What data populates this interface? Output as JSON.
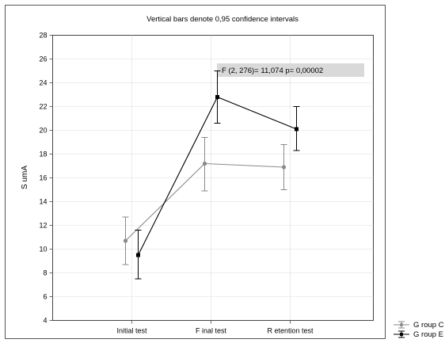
{
  "chart_data": {
    "type": "line",
    "title": "Vertical bars denote 0,95 confidence intervals",
    "ylabel": "S umA",
    "categories": [
      "Initial test",
      "F inal test",
      "R etention test"
    ],
    "ylim": [
      4,
      28
    ],
    "yticks": [
      4,
      6,
      8,
      10,
      12,
      14,
      16,
      18,
      20,
      22,
      24,
      26,
      28
    ],
    "grid": true,
    "annotation": "F (2,  276)= 11,074    p= 0,00002",
    "legend_position": "bottom-right",
    "series": [
      {
        "name": "G roup C",
        "color": "#8a8a8a",
        "marker": "circle",
        "values": [
          10.7,
          17.2,
          16.9
        ],
        "ci_low": [
          8.7,
          14.9,
          15.0
        ],
        "ci_high": [
          12.7,
          19.4,
          18.8
        ]
      },
      {
        "name": "G roup E",
        "color": "#000000",
        "marker": "square",
        "values": [
          9.5,
          22.8,
          20.1
        ],
        "ci_low": [
          7.5,
          20.6,
          18.3
        ],
        "ci_high": [
          11.6,
          25.0,
          22.0
        ]
      }
    ]
  }
}
